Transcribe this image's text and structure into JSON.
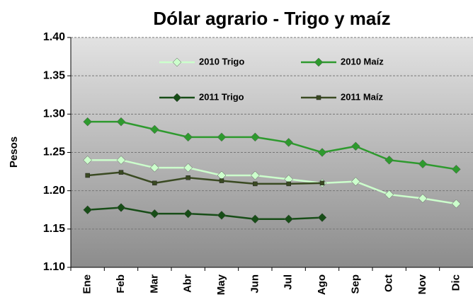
{
  "chart_data": {
    "type": "line",
    "title": "Dólar agrario  - Trigo y maíz",
    "y_label": "Pesos",
    "categories": [
      "Ene",
      "Feb",
      "Mar",
      "Abr",
      "May",
      "Jun",
      "Jul",
      "Ago",
      "Sep",
      "Oct",
      "Nov",
      "Dic"
    ],
    "series": [
      {
        "name": "2010 Trigo",
        "color": "#ccffcc",
        "marker": "diamond",
        "values": [
          1.24,
          1.24,
          1.23,
          1.23,
          1.22,
          1.22,
          1.215,
          1.21,
          1.212,
          1.195,
          1.19,
          1.183
        ]
      },
      {
        "name": "2010 Maíz",
        "color": "#2e9a2e",
        "marker": "diamond",
        "values": [
          1.29,
          1.29,
          1.28,
          1.27,
          1.27,
          1.27,
          1.263,
          1.25,
          1.258,
          1.24,
          1.235,
          1.228
        ]
      },
      {
        "name": "2011 Trigo",
        "color": "#174d17",
        "marker": "diamond",
        "values": [
          1.175,
          1.178,
          1.17,
          1.17,
          1.168,
          1.163,
          1.163,
          1.165,
          null,
          null,
          null,
          null
        ]
      },
      {
        "name": "2011 Maíz",
        "color": "#3a4a22",
        "marker": "square",
        "values": [
          1.22,
          1.224,
          1.21,
          1.217,
          1.213,
          1.209,
          1.209,
          1.21,
          null,
          null,
          null,
          null
        ]
      }
    ],
    "ylim": [
      1.1,
      1.4
    ],
    "yticks": [
      {
        "value": 1.1,
        "label": "1.10"
      },
      1.15,
      {
        "value": 1.2,
        "label": "1.20"
      },
      1.25,
      {
        "value": 1.3,
        "label": "1.30"
      },
      1.35,
      {
        "value": 1.4,
        "label": "1.40"
      }
    ],
    "grid": true
  }
}
